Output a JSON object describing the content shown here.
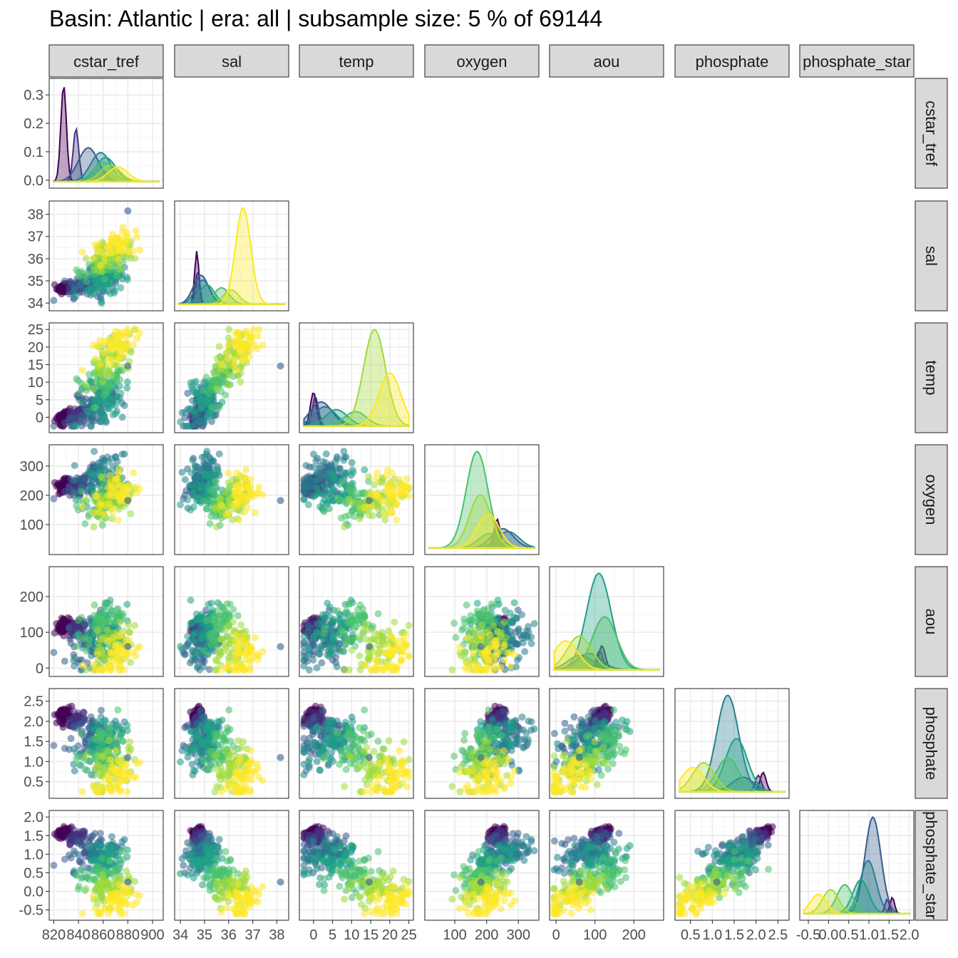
{
  "title": "Basin: Atlantic | era: all | subsample size: 5 % of 69144",
  "variables": [
    "cstar_tref",
    "sal",
    "temp",
    "oxygen",
    "aou",
    "phosphate",
    "phosphate_star"
  ],
  "palette": [
    "#440154",
    "#46327e",
    "#365c8d",
    "#277f8e",
    "#1fa187",
    "#4ac16d",
    "#a0da39",
    "#fde725"
  ],
  "chart_data": {
    "type": "scatter",
    "layout": "pairs-matrix (lower triangle scatter, diagonal density)",
    "grid": true,
    "legend": "none",
    "color_scale": "viridis",
    "axes": {
      "cstar_tref": {
        "range": [
          820,
          905
        ],
        "ticks": [
          820,
          840,
          860,
          880,
          900
        ],
        "tick_labels": [
          "820",
          "840",
          "860",
          "880",
          "900"
        ]
      },
      "sal": {
        "range": [
          33.95,
          38.3
        ],
        "ticks": [
          34,
          35,
          36,
          37,
          38
        ],
        "tick_labels": [
          "34",
          "35",
          "36",
          "37",
          "38"
        ]
      },
      "temp": {
        "range": [
          -2.5,
          25
        ],
        "ticks": [
          0,
          5,
          10,
          15,
          20,
          25
        ],
        "tick_labels": [
          "0",
          "5",
          "10",
          "15",
          "20",
          "25"
        ]
      },
      "oxygen": {
        "range": [
          20,
          350
        ],
        "ticks": [
          100,
          200,
          300
        ],
        "tick_labels": [
          "100",
          "200",
          "300"
        ]
      },
      "aou": {
        "range": [
          -5,
          265
        ],
        "ticks": [
          0,
          100,
          200
        ],
        "tick_labels": [
          "0",
          "100",
          "200"
        ]
      },
      "phosphate": {
        "range": [
          0.25,
          2.65
        ],
        "ticks": [
          0.5,
          1.0,
          1.5,
          2.0,
          2.5
        ],
        "tick_labels": [
          "0.5",
          "1.0",
          "1.5",
          "2.0",
          "2.5"
        ]
      },
      "phosphate_star": {
        "range": [
          -0.6,
          2.0
        ],
        "ticks": [
          -0.5,
          0.0,
          0.5,
          1.0,
          1.5,
          2.0
        ],
        "tick_labels": [
          "-0.5",
          "0.0",
          "0.5",
          "1.0",
          "1.5",
          "2.0"
        ]
      }
    },
    "y_axes": {
      "cstar_tref": {
        "range": [
          -0.005,
          0.335
        ],
        "ticks": [
          0.0,
          0.1,
          0.2,
          0.3
        ],
        "tick_labels": [
          "0.0",
          "0.1",
          "0.2",
          "0.3"
        ]
      },
      "sal": {
        "ticks": [
          34,
          35,
          36,
          37,
          38
        ]
      },
      "temp": {
        "ticks": [
          0,
          5,
          10,
          15,
          20,
          25
        ]
      },
      "oxygen": {
        "ticks": [
          100,
          200,
          300
        ]
      },
      "aou": {
        "ticks": [
          0,
          100,
          200
        ]
      },
      "phosphate": {
        "ticks": [
          0.5,
          1.0,
          1.5,
          2.0,
          2.5
        ]
      },
      "phosphate_star": {
        "ticks": [
          -0.5,
          0.0,
          0.5,
          1.0,
          1.5,
          2.0
        ]
      }
    },
    "clusters": [
      {
        "cstar_tref": 828,
        "sal": 34.68,
        "temp": 0.0,
        "oxygen": 233,
        "aou": 118,
        "phosphate": 2.16,
        "phosphate_star": 1.58
      },
      {
        "cstar_tref": 838,
        "sal": 34.72,
        "temp": 0.5,
        "oxygen": 232,
        "aou": 112,
        "phosphate": 2.05,
        "phosphate_star": 1.45
      },
      {
        "cstar_tref": 848,
        "sal": 34.85,
        "temp": 2.0,
        "oxygen": 250,
        "aou": 85,
        "phosphate": 1.7,
        "phosphate_star": 1.1
      },
      {
        "cstar_tref": 858,
        "sal": 34.92,
        "temp": 3.0,
        "oxygen": 268,
        "aou": 62,
        "phosphate": 1.35,
        "phosphate_star": 0.98
      },
      {
        "cstar_tref": 862,
        "sal": 35.1,
        "temp": 6.0,
        "oxygen": 210,
        "aou": 110,
        "phosphate": 1.55,
        "phosphate_star": 0.8
      },
      {
        "cstar_tref": 860,
        "sal": 35.7,
        "temp": 11.0,
        "oxygen": 170,
        "aou": 125,
        "phosphate": 1.35,
        "phosphate_star": 0.4
      },
      {
        "cstar_tref": 866,
        "sal": 36.1,
        "temp": 16.0,
        "oxygen": 180,
        "aou": 60,
        "phosphate": 0.8,
        "phosphate_star": 0.05
      },
      {
        "cstar_tref": 872,
        "sal": 36.6,
        "temp": 20.0,
        "oxygen": 205,
        "aou": 25,
        "phosphate": 0.55,
        "phosphate_star": -0.25
      }
    ],
    "outliers": [
      {
        "cstar_tref": 880,
        "sal": 38.15,
        "temp": 14.6,
        "oxygen": 182,
        "aou": 60,
        "phosphate": 1.1,
        "phosphate_star": 0.25
      }
    ]
  }
}
